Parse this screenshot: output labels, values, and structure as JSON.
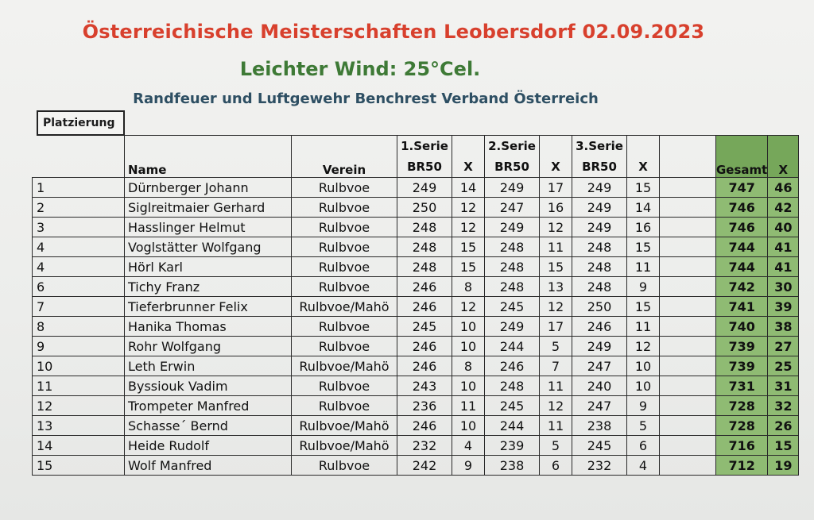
{
  "header": {
    "title": "Österreichische Meisterschaften Leobersdorf  02.09.2023",
    "weather": "Leichter Wind: 25°Cel.",
    "subtitle": "Randfeuer und Luftgewehr Benchrest Verband Österreich",
    "placement_label": "Platzierung"
  },
  "table": {
    "columns": {
      "name": "Name",
      "verein": "Verein",
      "serie1": "1.Serie",
      "serie2": "2.Serie",
      "serie3": "3.Serie",
      "br50": "BR50",
      "x": "X",
      "gesamt": "Gesamt",
      "total_x": "X"
    },
    "rows": [
      {
        "rank": "1",
        "name": "Dürnberger Johann",
        "verein": "Rulbvoe",
        "s1": "249",
        "x1": "14",
        "s2": "249",
        "x2": "17",
        "s3": "249",
        "x3": "15",
        "total": "747",
        "tx": "46"
      },
      {
        "rank": "2",
        "name": "Siglreitmaier Gerhard",
        "verein": "Rulbvoe",
        "s1": "250",
        "x1": "12",
        "s2": "247",
        "x2": "16",
        "s3": "249",
        "x3": "14",
        "total": "746",
        "tx": "42"
      },
      {
        "rank": "3",
        "name": "Hasslinger Helmut",
        "verein": "Rulbvoe",
        "s1": "248",
        "x1": "12",
        "s2": "249",
        "x2": "12",
        "s3": "249",
        "x3": "16",
        "total": "746",
        "tx": "40"
      },
      {
        "rank": "4",
        "name": "Voglstätter Wolfgang",
        "verein": "Rulbvoe",
        "s1": "248",
        "x1": "15",
        "s2": "248",
        "x2": "11",
        "s3": "248",
        "x3": "15",
        "total": "744",
        "tx": "41"
      },
      {
        "rank": "4",
        "name": "Hörl Karl",
        "verein": "Rulbvoe",
        "s1": "248",
        "x1": "15",
        "s2": "248",
        "x2": "15",
        "s3": "248",
        "x3": "11",
        "total": "744",
        "tx": "41"
      },
      {
        "rank": "6",
        "name": "Tichy Franz",
        "verein": "Rulbvoe",
        "s1": "246",
        "x1": "8",
        "s2": "248",
        "x2": "13",
        "s3": "248",
        "x3": "9",
        "total": "742",
        "tx": "30"
      },
      {
        "rank": "7",
        "name": "Tieferbrunner Felix",
        "verein": "Rulbvoe/Mahö",
        "s1": "246",
        "x1": "12",
        "s2": "245",
        "x2": "12",
        "s3": "250",
        "x3": "15",
        "total": "741",
        "tx": "39"
      },
      {
        "rank": "8",
        "name": "Hanika Thomas",
        "verein": "Rulbvoe",
        "s1": "245",
        "x1": "10",
        "s2": "249",
        "x2": "17",
        "s3": "246",
        "x3": "11",
        "total": "740",
        "tx": "38"
      },
      {
        "rank": "9",
        "name": "Rohr Wolfgang",
        "verein": "Rulbvoe",
        "s1": "246",
        "x1": "10",
        "s2": "244",
        "x2": "5",
        "s3": "249",
        "x3": "12",
        "total": "739",
        "tx": "27"
      },
      {
        "rank": "10",
        "name": "Leth Erwin",
        "verein": "Rulbvoe/Mahö",
        "s1": "246",
        "x1": "8",
        "s2": "246",
        "x2": "7",
        "s3": "247",
        "x3": "10",
        "total": "739",
        "tx": "25"
      },
      {
        "rank": "11",
        "name": "Byssiouk Vadim",
        "verein": "Rulbvoe",
        "s1": "243",
        "x1": "10",
        "s2": "248",
        "x2": "11",
        "s3": "240",
        "x3": "10",
        "total": "731",
        "tx": "31"
      },
      {
        "rank": "12",
        "name": "Trompeter Manfred",
        "verein": "Rulbvoe",
        "s1": "236",
        "x1": "11",
        "s2": "245",
        "x2": "12",
        "s3": "247",
        "x3": "9",
        "total": "728",
        "tx": "32"
      },
      {
        "rank": "13",
        "name": "Schasse´ Bernd",
        "verein": "Rulbvoe/Mahö",
        "s1": "246",
        "x1": "10",
        "s2": "244",
        "x2": "11",
        "s3": "238",
        "x3": "5",
        "total": "728",
        "tx": "26"
      },
      {
        "rank": "14",
        "name": "Heide Rudolf",
        "verein": "Rulbvoe/Mahö",
        "s1": "232",
        "x1": "4",
        "s2": "239",
        "x2": "5",
        "s3": "245",
        "x3": "6",
        "total": "716",
        "tx": "15"
      },
      {
        "rank": "15",
        "name": "Wolf Manfred",
        "verein": "Rulbvoe",
        "s1": "242",
        "x1": "9",
        "s2": "238",
        "x2": "6",
        "s3": "232",
        "x3": "4",
        "total": "712",
        "tx": "19"
      }
    ]
  },
  "colors": {
    "title": "#d8402d",
    "weather": "#3e7a36",
    "subtitle": "#2e4f63",
    "total_fill": "#76a75a"
  }
}
